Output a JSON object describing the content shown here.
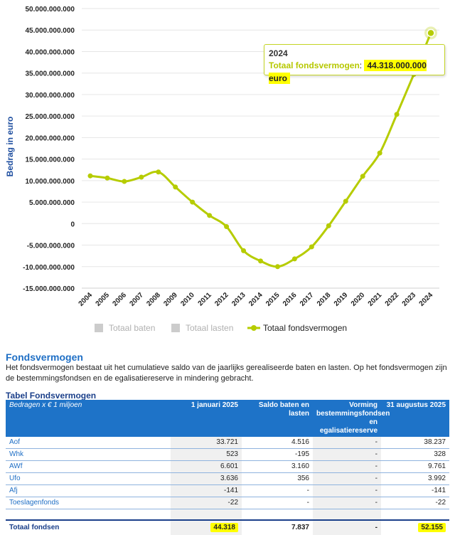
{
  "chart_data": {
    "type": "line",
    "ylabel": "Bedrag in euro",
    "x": [
      "2004",
      "2005",
      "2006",
      "2007",
      "2008",
      "2009",
      "2010",
      "2011",
      "2012",
      "2013",
      "2014",
      "2015",
      "2016",
      "2017",
      "2018",
      "2019",
      "2020",
      "2021",
      "2022",
      "2023",
      "2024"
    ],
    "y_ticks": [
      "50.000.000.000",
      "45.000.000.000",
      "40.000.000.000",
      "35.000.000.000",
      "30.000.000.000",
      "25.000.000.000",
      "20.000.000.000",
      "15.000.000.000",
      "10.000.000.000",
      "5.000.000.000",
      "0",
      "-5.000.000.000",
      "-10.000.000.000",
      "-15.000.000.000"
    ],
    "ylim": [
      -15000000000,
      50000000000
    ],
    "series": [
      {
        "name": "Totaal fondsvermogen",
        "color": "#b6cc00",
        "values": [
          11100000000,
          10600000000,
          9800000000,
          10800000000,
          12000000000,
          8500000000,
          5000000000,
          1900000000,
          -700000000,
          -6300000000,
          -8700000000,
          -10000000000,
          -8200000000,
          -5400000000,
          -500000000,
          5200000000,
          11000000000,
          16400000000,
          25400000000,
          34700000000,
          44318000000
        ]
      }
    ],
    "legend": [
      {
        "label": "Totaal baten",
        "color": "#cccccc",
        "active": false
      },
      {
        "label": "Totaal lasten",
        "color": "#cccccc",
        "active": false
      },
      {
        "label": "Totaal fondsvermogen",
        "color": "#b6cc00",
        "active": true
      }
    ],
    "tooltip": {
      "year": "2024",
      "series": "Totaal fondsvermogen",
      "value": "44.318.000.000 euro"
    }
  },
  "section": {
    "title": "Fondsvermogen",
    "text": "Het fondsvermogen bestaat uit het cumulatieve saldo van de jaarlijks gerealiseerde baten en lasten. Op het fondsvermogen zijn de bestemmingsfondsen en de egalisatiereserve in mindering gebracht."
  },
  "table": {
    "title": "Tabel Fondsvermogen",
    "headers": [
      "Bedragen x € 1 miljoen",
      "1 januari 2025",
      "Saldo baten en lasten",
      "Vorming bestemmingsfondsen en egalisatiereserve",
      "31 augustus 2025"
    ],
    "rows": [
      {
        "label": "Aof",
        "cells": [
          "33.721",
          "4.516",
          "-",
          "38.237"
        ]
      },
      {
        "label": "Whk",
        "cells": [
          "523",
          "-195",
          "-",
          "328"
        ]
      },
      {
        "label": "AWf",
        "cells": [
          "6.601",
          "3.160",
          "-",
          "9.761"
        ]
      },
      {
        "label": "Ufo",
        "cells": [
          "3.636",
          "356",
          "-",
          "3.992"
        ]
      },
      {
        "label": "Afj",
        "cells": [
          "-141",
          "-",
          "-",
          "-141"
        ]
      },
      {
        "label": "Toeslagenfonds",
        "cells": [
          "-22",
          "-",
          "-",
          "-22"
        ]
      }
    ],
    "total": {
      "label": "Totaal fondsen",
      "cells": [
        "44.318",
        "7.837",
        "-",
        "52.155"
      ]
    }
  }
}
